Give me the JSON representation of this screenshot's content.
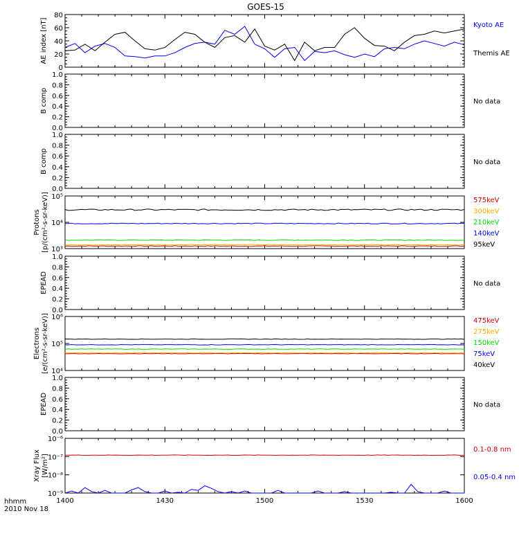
{
  "title": "GOES-15",
  "x_axis": {
    "ticks": [
      "1400",
      "1430",
      "1500",
      "1530",
      "1600"
    ],
    "corner_label_1": "hhmm",
    "corner_label_2": "2010 Nov 18"
  },
  "colors": {
    "black": "#000000",
    "blue": "#0000ff",
    "red": "#cc0000",
    "orange": "#ffaa00",
    "green": "#00dd00"
  },
  "chart_data": [
    {
      "type": "line",
      "ylabel": "AE index [nT]",
      "ylim": [
        0,
        80
      ],
      "yticks": [
        "0",
        "20",
        "40",
        "60",
        "80"
      ],
      "x_range": [
        0,
        120
      ],
      "series": [
        {
          "name": "Kyoto AE",
          "color": "#0000ff",
          "x": [
            0,
            3,
            6,
            9,
            12,
            15,
            18,
            21,
            24,
            27,
            30,
            33,
            36,
            39,
            42,
            45,
            48,
            51,
            54,
            57,
            60,
            63,
            66,
            69,
            72,
            75,
            78,
            81,
            84,
            87,
            90,
            93,
            96,
            99,
            102,
            105,
            108,
            111,
            114,
            117,
            120
          ],
          "values": [
            30,
            36,
            22,
            32,
            36,
            30,
            17,
            16,
            14,
            17,
            17,
            22,
            30,
            36,
            38,
            35,
            56,
            50,
            62,
            35,
            28,
            15,
            28,
            30,
            10,
            24,
            22,
            25,
            19,
            15,
            20,
            16,
            28,
            30,
            28,
            35,
            40,
            36,
            32,
            38,
            34
          ]
        },
        {
          "name": "Themis AE",
          "color": "#000000",
          "x": [
            0,
            3,
            6,
            9,
            12,
            15,
            18,
            21,
            24,
            27,
            30,
            33,
            36,
            39,
            42,
            45,
            48,
            51,
            54,
            57,
            60,
            63,
            66,
            69,
            72,
            75,
            78,
            81,
            84,
            87,
            90,
            93,
            96,
            99,
            102,
            105,
            108,
            111,
            114,
            117,
            120
          ],
          "values": [
            25,
            26,
            35,
            25,
            38,
            50,
            53,
            40,
            28,
            26,
            30,
            42,
            53,
            50,
            38,
            30,
            45,
            48,
            38,
            58,
            32,
            26,
            35,
            10,
            38,
            25,
            30,
            30,
            50,
            60,
            44,
            33,
            32,
            25,
            38,
            48,
            50,
            55,
            52,
            55,
            58
          ]
        }
      ]
    },
    {
      "type": "line",
      "ylabel": "B comp",
      "ylim": [
        0,
        1
      ],
      "yticks": [
        "0.0",
        "0.2",
        "0.4",
        "0.6",
        "0.8",
        "1.0"
      ],
      "note": "No data",
      "series": []
    },
    {
      "type": "line",
      "ylabel": "B comp",
      "ylim": [
        0,
        1
      ],
      "yticks": [
        "0.0",
        "0.2",
        "0.4",
        "0.6",
        "0.8",
        "1.0"
      ],
      "note": "No data",
      "series": []
    },
    {
      "type": "line",
      "ylabel_1": "Protons",
      "ylabel_2": "[p/(cm²-s-sr-keV)]",
      "log_scale": true,
      "ylim": [
        1000,
        100000
      ],
      "yticks": [
        "10³",
        "10⁴",
        "10⁵"
      ],
      "x_range": [
        0,
        120
      ],
      "series": [
        {
          "name": "575keV",
          "color": "#cc0000",
          "const": 1250,
          "noise": 0.03
        },
        {
          "name": "300keV",
          "color": "#ffaa00",
          "const": 1400,
          "noise": 0.03
        },
        {
          "name": "210keV",
          "color": "#00dd00",
          "const": 2100,
          "noise": 0.03
        },
        {
          "name": "140keV",
          "color": "#0000ff",
          "const": 9000,
          "noise": 0.04
        },
        {
          "name": "95keV",
          "color": "#000000",
          "const": 30000,
          "noise": 0.06
        }
      ]
    },
    {
      "type": "line",
      "ylabel": "EPEAD",
      "ylim": [
        0,
        1
      ],
      "yticks": [
        "0.0",
        "0.2",
        "0.4",
        "0.6",
        "0.8",
        "1.0"
      ],
      "note": "No data",
      "series": []
    },
    {
      "type": "line",
      "ylabel_1": "Electrons",
      "ylabel_2": "[e/(cm²-s-sr-keV)]",
      "log_scale": true,
      "ylim": [
        10000,
        1000000
      ],
      "yticks": [
        "10⁴",
        "10⁵",
        "10⁶"
      ],
      "x_range": [
        0,
        120
      ],
      "series": [
        {
          "name": "475keV",
          "color": "#cc0000",
          "const": 42000,
          "noise": 0.02
        },
        {
          "name": "275keV",
          "color": "#ffaa00",
          "const": 45000,
          "noise": 0.02
        },
        {
          "name": "150keV",
          "color": "#00dd00",
          "const": 62000,
          "noise": 0.02
        },
        {
          "name": "75keV",
          "color": "#0000ff",
          "const": 90000,
          "noise": 0.02
        },
        {
          "name": "40keV",
          "color": "#000000",
          "const": 145000,
          "noise": 0.02
        }
      ]
    },
    {
      "type": "line",
      "ylabel": "EPEAD",
      "ylim": [
        0,
        1
      ],
      "yticks": [
        "0.0",
        "0.2",
        "0.4",
        "0.6",
        "0.8",
        "1.0"
      ],
      "note": "No data",
      "series": []
    },
    {
      "type": "line",
      "ylabel_1": "Xray Flux",
      "ylabel_2": "[W/m²]",
      "log_scale": true,
      "ylim": [
        1e-09,
        1e-06
      ],
      "yticks": [
        "10⁻⁹",
        "10⁻⁸",
        "10⁻⁷",
        "10⁻⁶"
      ],
      "x_range": [
        0,
        120
      ],
      "series": [
        {
          "name": "0.1-0.8 nm",
          "color": "#cc0000",
          "const": 1.2e-07,
          "noise": 0.03
        },
        {
          "name": "0.05-0.4 nm",
          "color": "#0000ff",
          "x": [
            0,
            2,
            4,
            6,
            8,
            10,
            12,
            14,
            16,
            18,
            20,
            22,
            24,
            26,
            28,
            30,
            32,
            34,
            36,
            38,
            40,
            42,
            44,
            46,
            48,
            50,
            52,
            54,
            56,
            58,
            60,
            62,
            64,
            66,
            68,
            70,
            72,
            74,
            76,
            78,
            80,
            82,
            84,
            86,
            88,
            90,
            92,
            94,
            96,
            98,
            100,
            102,
            104,
            106,
            108,
            110,
            112,
            114,
            116,
            118,
            120
          ],
          "values": [
            1e-09,
            1.3e-09,
            1e-09,
            2e-09,
            1.2e-09,
            1e-09,
            1.4e-09,
            1e-09,
            1e-09,
            1e-09,
            1.5e-09,
            2e-09,
            1.2e-09,
            1e-09,
            1e-09,
            1.3e-09,
            1e-09,
            1.1e-09,
            1e-09,
            1.6e-09,
            1.4e-09,
            2.5e-09,
            1.8e-09,
            1.2e-09,
            1e-09,
            1.2e-09,
            1e-09,
            1.3e-09,
            1e-09,
            1e-09,
            1e-09,
            1e-09,
            1.4e-09,
            1e-09,
            1e-09,
            1e-09,
            1e-09,
            1e-09,
            1.3e-09,
            1e-09,
            1e-09,
            1e-09,
            1.2e-09,
            1e-09,
            1e-09,
            1e-09,
            1e-09,
            1e-09,
            1e-09,
            1.1e-09,
            1e-09,
            1e-09,
            3e-09,
            1.2e-09,
            1e-09,
            1e-09,
            1e-09,
            1.3e-09,
            1e-09,
            1e-09,
            1e-09
          ]
        }
      ]
    }
  ]
}
